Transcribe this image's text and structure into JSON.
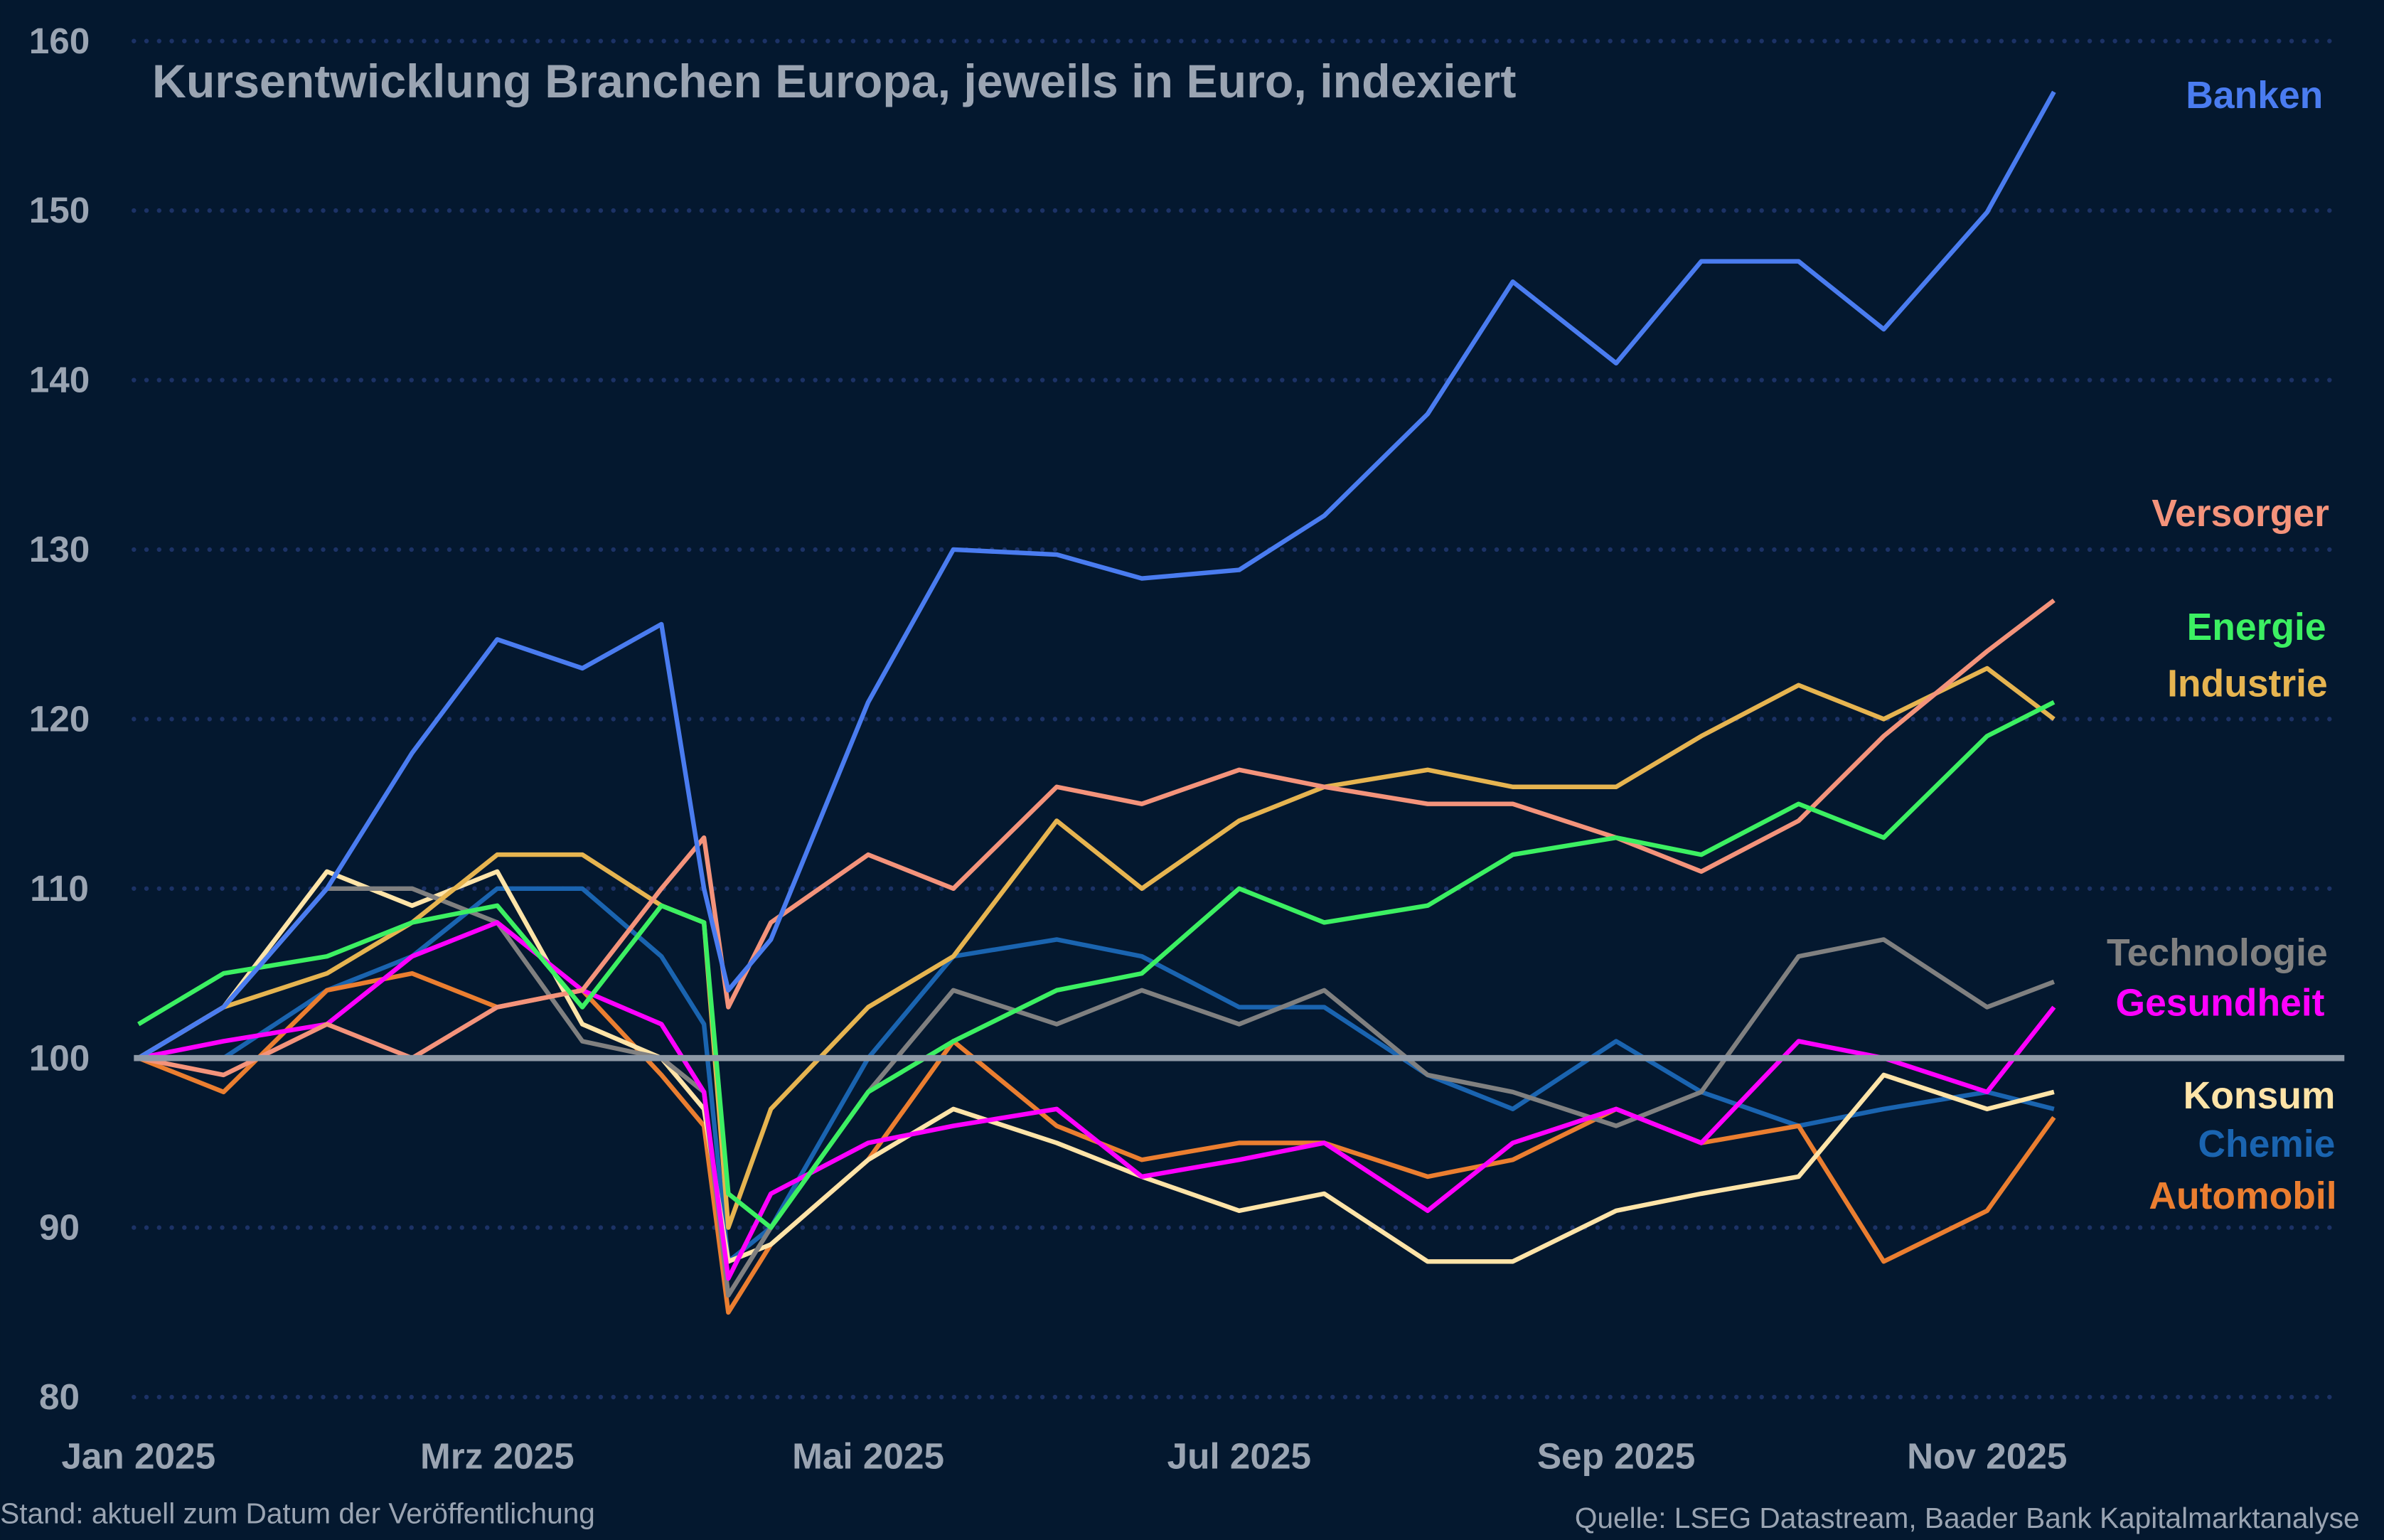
{
  "chart_data": {
    "type": "line",
    "title": "Kursentwicklung Branchen Europa, jeweils in Euro, indexiert",
    "xlabel": "",
    "ylabel": "",
    "ylim": [
      80,
      160
    ],
    "yticks": [
      80,
      90,
      100,
      110,
      120,
      130,
      140,
      150,
      160
    ],
    "xticks": [
      "Jan 2025",
      "Mrz 2025",
      "Mai 2025",
      "Jul 2025",
      "Sep 2025",
      "Nov 2025"
    ],
    "xtick_dates": [
      "2025-01-01",
      "2025-03-01",
      "2025-05-01",
      "2025-07-01",
      "2025-09-01",
      "2025-11-01"
    ],
    "xlim": [
      "2025-01-01",
      "2025-12-31"
    ],
    "grid": "horizontal dotted",
    "baseline": 100,
    "legend": "right, labels at line ends",
    "x": [
      "2025-01-01",
      "2025-01-15",
      "2025-02-01",
      "2025-02-15",
      "2025-03-01",
      "2025-03-15",
      "2025-03-28",
      "2025-04-04",
      "2025-04-08",
      "2025-04-15",
      "2025-05-01",
      "2025-05-15",
      "2025-06-01",
      "2025-06-15",
      "2025-07-01",
      "2025-07-15",
      "2025-08-01",
      "2025-08-15",
      "2025-09-01",
      "2025-09-15",
      "2025-10-01",
      "2025-10-15",
      "2025-11-01",
      "2025-11-12"
    ],
    "series": [
      {
        "name": "Chemie",
        "color": "#1a64b0",
        "values": [
          100,
          100,
          104,
          106,
          110,
          110,
          106,
          102,
          88,
          90,
          100,
          106,
          107,
          106,
          103,
          103,
          99,
          97,
          101,
          98,
          96,
          97,
          98,
          97
        ]
      },
      {
        "name": "Automobil",
        "color": "#eb7e30",
        "values": [
          100,
          98,
          104,
          105,
          103,
          104,
          99,
          96,
          85,
          89,
          94,
          101,
          96,
          94,
          95,
          95,
          93,
          94,
          97,
          95,
          96,
          88,
          91,
          96.5
        ]
      },
      {
        "name": "Konsum",
        "color": "#ffe4a8",
        "values": [
          100,
          103,
          111,
          109,
          111,
          102,
          100,
          97,
          88,
          89,
          94,
          97,
          95,
          93,
          91,
          92,
          88,
          88,
          91,
          92,
          93,
          99,
          97,
          98
        ]
      },
      {
        "name": "Technologie",
        "color": "#808080",
        "values": [
          100,
          103,
          110,
          110,
          108,
          101,
          100,
          98,
          86,
          90,
          98,
          104,
          102,
          104,
          102,
          104,
          99,
          98,
          96,
          98,
          106,
          107,
          103,
          104.5
        ]
      },
      {
        "name": "Gesundheit",
        "color": "#ff00ff",
        "values": [
          100,
          101,
          102,
          106,
          108,
          104,
          102,
          98,
          87,
          92,
          95,
          96,
          97,
          93,
          94,
          95,
          91,
          95,
          97,
          95,
          101,
          100,
          98,
          103
        ]
      },
      {
        "name": "Industrie",
        "color": "#e6b450",
        "values": [
          100,
          103,
          105,
          108,
          112,
          112,
          109,
          108,
          90,
          97,
          103,
          106,
          114,
          110,
          114,
          116,
          117,
          116,
          116,
          119,
          122,
          120,
          123,
          120
        ]
      },
      {
        "name": "Versorger",
        "color": "#f4937b",
        "values": [
          100,
          99,
          102,
          100,
          103,
          104,
          110,
          113,
          103,
          108,
          112,
          110,
          116,
          115,
          117,
          116,
          115,
          115,
          113,
          111,
          114,
          119,
          124,
          127
        ]
      },
      {
        "name": "Energie",
        "color": "#3cf062",
        "values": [
          102,
          105,
          106,
          108,
          109,
          103,
          109,
          108,
          92,
          90,
          98,
          101,
          104,
          105,
          110,
          108,
          109,
          112,
          113,
          112,
          115,
          113,
          119,
          121
        ]
      },
      {
        "name": "Banken",
        "color": "#4a7cf0",
        "values": [
          100,
          103,
          110,
          118,
          124.7,
          123,
          125.6,
          110,
          104,
          107,
          121,
          130,
          129.7,
          128.3,
          128.8,
          132,
          138,
          145.8,
          141,
          147,
          147,
          143,
          149.9,
          157
        ]
      }
    ]
  },
  "colors": {
    "background": "#04182f",
    "grid": "#1c3266",
    "baseline": "#8e99a6",
    "text": "#9aa4b2"
  },
  "footer": {
    "left": "Stand: aktuell zum Datum der Veröffentlichung",
    "right": "Quelle: LSEG Datastream, Baader Bank Kapitalmarktanalyse"
  }
}
